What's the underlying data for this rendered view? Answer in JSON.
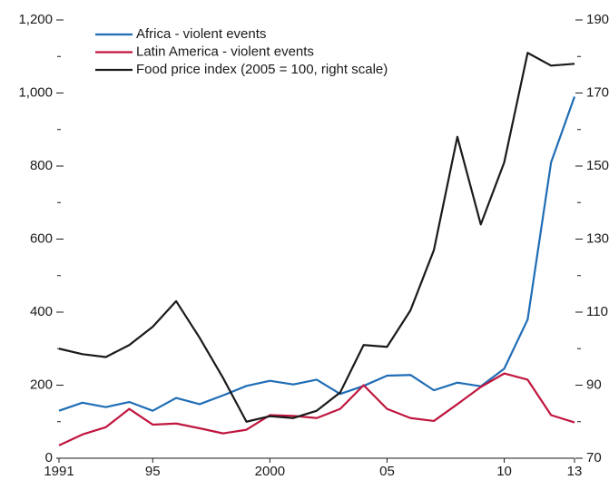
{
  "chart_data": {
    "type": "line",
    "x": [
      1991,
      1992,
      1993,
      1994,
      1995,
      1996,
      1997,
      1998,
      1999,
      2000,
      2001,
      2002,
      2003,
      2004,
      2005,
      2006,
      2007,
      2008,
      2009,
      2010,
      2011,
      2012,
      2013
    ],
    "series": [
      {
        "name": "Africa - violent events",
        "color": "#1f6db5",
        "axis": "y",
        "values": [
          130,
          152,
          140,
          154,
          130,
          165,
          148,
          172,
          198,
          212,
          202,
          215,
          176,
          198,
          226,
          228,
          186,
          207,
          197,
          245,
          380,
          810,
          990
        ]
      },
      {
        "name": "Latin America - violent events",
        "color": "#c0163f",
        "axis": "y",
        "values": [
          35,
          65,
          85,
          135,
          92,
          95,
          82,
          68,
          78,
          118,
          116,
          110,
          135,
          200,
          135,
          110,
          102,
          148,
          195,
          232,
          215,
          118,
          98
        ]
      },
      {
        "name": "Food price index (2005 = 100, right scale)",
        "color": "#1a1a1a",
        "axis": "y2",
        "values": [
          100,
          98.5,
          97.7,
          101,
          106,
          113,
          103,
          92,
          80,
          81.5,
          81,
          83,
          88,
          101,
          100.5,
          110.5,
          127,
          158,
          134,
          151,
          181,
          177.5,
          178
        ]
      }
    ],
    "xlim": [
      1991,
      2013
    ],
    "xticks": [
      1991,
      {
        "value": 1995,
        "label": "95"
      },
      2000,
      {
        "value": 2005,
        "label": "05"
      },
      {
        "value": 2010,
        "label": "10"
      },
      {
        "value": 2013,
        "label": "13"
      }
    ],
    "ylim": [
      0,
      1200
    ],
    "yticks": [
      0,
      200,
      400,
      600,
      800,
      {
        "value": 1000,
        "label": "1,000"
      },
      {
        "value": 1200,
        "label": "1,200"
      }
    ],
    "yminorticks": [
      100,
      300,
      500,
      700,
      900,
      1100
    ],
    "y2lim": [
      70,
      190
    ],
    "y2ticks": [
      70,
      90,
      110,
      130,
      150,
      170,
      190
    ],
    "y2minorticks": [
      80,
      100,
      120,
      140,
      160,
      180
    ],
    "legend": "upper left"
  }
}
